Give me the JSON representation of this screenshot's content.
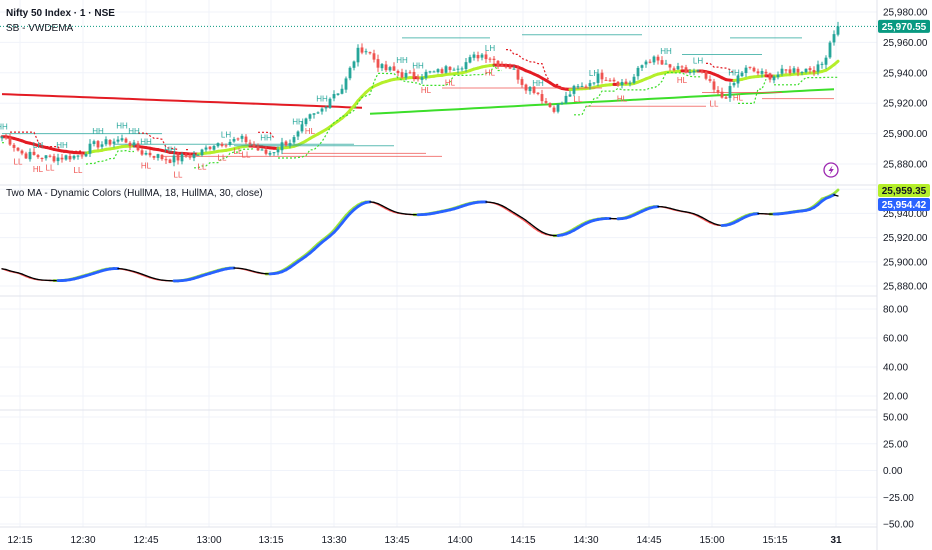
{
  "header": {
    "symbol_title": "Nifty 50 Index · 1 · NSE",
    "indicator_label": "SB - VWDEMA"
  },
  "hma_legend": "Two MA - Dynamic Colors (HullMA, 18, HullMA, 30, close)",
  "price_tag": "25,970.55",
  "hma_tag_fast": "25,959.35",
  "hma_tag_slow": "25,954.42",
  "pivot_labels": [
    "HH",
    "LH",
    "HL",
    "LL"
  ],
  "colors": {
    "up": "#26a69a",
    "down": "#ef5350",
    "vwdema_red": "#e31b23",
    "vwdema_lime": "#b5ef2a",
    "long_green": "#3cde2a",
    "hma_blue": "#2962ff",
    "hma_lime": "#9be53b",
    "hma_red": "#ff5a5a",
    "hma_black": "#000000",
    "lightning": "#9c27b0",
    "price_tag_bg": "#089981",
    "fast_tag_bg": "#b5ef2a",
    "slow_tag_bg": "#2962ff"
  },
  "chart_data": [
    {
      "type": "candlestick",
      "name": "Nifty 50 Index · 1 · NSE",
      "ylim": [
        25866,
        25986
      ],
      "y_ticks": [
        "25,980.00",
        "25,960.00",
        "25,940.00",
        "25,920.00",
        "25,900.00",
        "25,880.00"
      ],
      "y_tick_values": [
        25980,
        25960,
        25940,
        25920,
        25900,
        25880
      ],
      "x_ticks": [
        "12:15",
        "12:30",
        "12:45",
        "13:00",
        "13:15",
        "13:30",
        "13:45",
        "14:00",
        "14:15",
        "14:30",
        "14:45",
        "15:00",
        "15:15",
        "31"
      ],
      "last_price": 25970.55,
      "anchor_close": [
        [
          0,
          25898
        ],
        [
          6,
          25886
        ],
        [
          12,
          25884
        ],
        [
          18,
          25885
        ],
        [
          24,
          25893
        ],
        [
          30,
          25896
        ],
        [
          36,
          25887
        ],
        [
          42,
          25883
        ],
        [
          48,
          25886
        ],
        [
          54,
          25894
        ],
        [
          60,
          25896
        ],
        [
          66,
          25887
        ],
        [
          72,
          25895
        ],
        [
          78,
          25912
        ],
        [
          84,
          25928
        ],
        [
          90,
          25956
        ],
        [
          96,
          25942
        ],
        [
          102,
          25938
        ],
        [
          108,
          25940
        ],
        [
          114,
          25945
        ],
        [
          120,
          25952
        ],
        [
          126,
          25945
        ],
        [
          132,
          25930
        ],
        [
          138,
          25917
        ],
        [
          144,
          25930
        ],
        [
          150,
          25938
        ],
        [
          156,
          25933
        ],
        [
          162,
          25949
        ],
        [
          168,
          25942
        ],
        [
          174,
          25940
        ],
        [
          180,
          25924
        ],
        [
          186,
          25942
        ],
        [
          192,
          25938
        ],
        [
          198,
          25942
        ],
        [
          204,
          25943
        ],
        [
          209,
          25970
        ]
      ]
    },
    {
      "type": "line",
      "name": "HullMA",
      "ylim": [
        25866,
        25986
      ],
      "y_ticks": [
        "25,980.00",
        "25,960.00",
        "25,940.00",
        "25,920.00",
        "25,900.00",
        "25,880.00"
      ],
      "y_tick_values": [
        25980,
        25960,
        25940,
        25920,
        25900,
        25880
      ],
      "fast_last": 25959.35,
      "slow_last": 25954.42
    },
    {
      "type": "line",
      "name": "oscillator",
      "ylim": [
        10,
        90
      ],
      "y_ticks": [
        "80.00",
        "60.00",
        "40.00",
        "20.00"
      ],
      "y_tick_values": [
        80,
        60,
        40,
        20
      ]
    },
    {
      "type": "line",
      "name": "oscillator-2",
      "ylim": [
        -55,
        60
      ],
      "y_ticks": [
        "50.00",
        "25.00",
        "0.00",
        "−25.00",
        "−50.00"
      ],
      "y_tick_values": [
        50,
        25,
        0,
        -25,
        -50
      ]
    }
  ]
}
